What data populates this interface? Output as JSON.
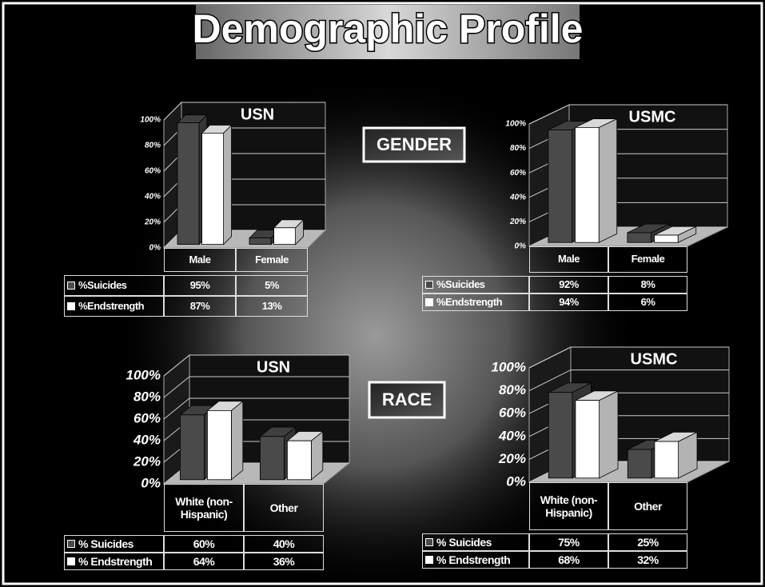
{
  "header": {
    "title": "Demographic Profile"
  },
  "sections": [
    "GENDER",
    "RACE"
  ],
  "chart_data": [
    {
      "type": "bar3d",
      "title": "USN",
      "categories": [
        "Male",
        "Female"
      ],
      "series": [
        {
          "name": "%Suicides",
          "color": "#4a4a4a",
          "values": [
            95,
            5
          ],
          "value_labels": [
            "95%",
            "5%"
          ]
        },
        {
          "name": "%Endstrength",
          "color": "#ffffff",
          "values": [
            87,
            13
          ],
          "value_labels": [
            "87%",
            "13%"
          ]
        }
      ],
      "ylim": [
        0,
        100
      ],
      "yticks": [
        {
          "value": 0,
          "label": "0%"
        },
        {
          "value": 20,
          "label": "20%"
        },
        {
          "value": 40,
          "label": "40%"
        },
        {
          "value": 60,
          "label": "60%"
        },
        {
          "value": 80,
          "label": "80%"
        },
        {
          "value": 100,
          "label": "100%"
        }
      ],
      "grid": true
    },
    {
      "type": "bar3d",
      "title": "USMC",
      "categories": [
        "Male",
        "Female"
      ],
      "series": [
        {
          "name": "%Suicides",
          "color": "#4a4a4a",
          "values": [
            92,
            8
          ],
          "value_labels": [
            "92%",
            "8%"
          ]
        },
        {
          "name": "%Endstrength",
          "color": "#ffffff",
          "values": [
            94,
            6
          ],
          "value_labels": [
            "94%",
            "6%"
          ]
        }
      ],
      "ylim": [
        0,
        100
      ],
      "yticks": [
        {
          "value": 0,
          "label": "0%"
        },
        {
          "value": 20,
          "label": "20%"
        },
        {
          "value": 40,
          "label": "40%"
        },
        {
          "value": 60,
          "label": "60%"
        },
        {
          "value": 80,
          "label": "80%"
        },
        {
          "value": 100,
          "label": "100%"
        }
      ],
      "grid": true
    },
    {
      "type": "bar3d",
      "title": "USN",
      "categories": [
        "White (non-Hispanic)",
        "Other"
      ],
      "series": [
        {
          "name": "% Suicides",
          "color": "#4a4a4a",
          "values": [
            60,
            40
          ],
          "value_labels": [
            "60%",
            "40%"
          ]
        },
        {
          "name": "% Endstrength",
          "color": "#ffffff",
          "values": [
            64,
            36
          ],
          "value_labels": [
            "64%",
            "36%"
          ]
        }
      ],
      "ylim": [
        0,
        100
      ],
      "yticks": [
        {
          "value": 0,
          "label": "0%"
        },
        {
          "value": 20,
          "label": "20%"
        },
        {
          "value": 40,
          "label": "40%"
        },
        {
          "value": 60,
          "label": "60%"
        },
        {
          "value": 80,
          "label": "80%"
        },
        {
          "value": 100,
          "label": "100%"
        }
      ],
      "grid": true
    },
    {
      "type": "bar3d",
      "title": "USMC",
      "categories": [
        "White (non-Hispanic)",
        "Other"
      ],
      "series": [
        {
          "name": "% Suicides",
          "color": "#4a4a4a",
          "values": [
            75,
            25
          ],
          "value_labels": [
            "75%",
            "25%"
          ]
        },
        {
          "name": "% Endstrength",
          "color": "#ffffff",
          "values": [
            68,
            32
          ],
          "value_labels": [
            "68%",
            "32%"
          ]
        }
      ],
      "ylim": [
        0,
        100
      ],
      "yticks": [
        {
          "value": 0,
          "label": "0%"
        },
        {
          "value": 20,
          "label": "20%"
        },
        {
          "value": 40,
          "label": "40%"
        },
        {
          "value": 60,
          "label": "60%"
        },
        {
          "value": 80,
          "label": "80%"
        },
        {
          "value": 100,
          "label": "100%"
        }
      ],
      "grid": true
    }
  ]
}
